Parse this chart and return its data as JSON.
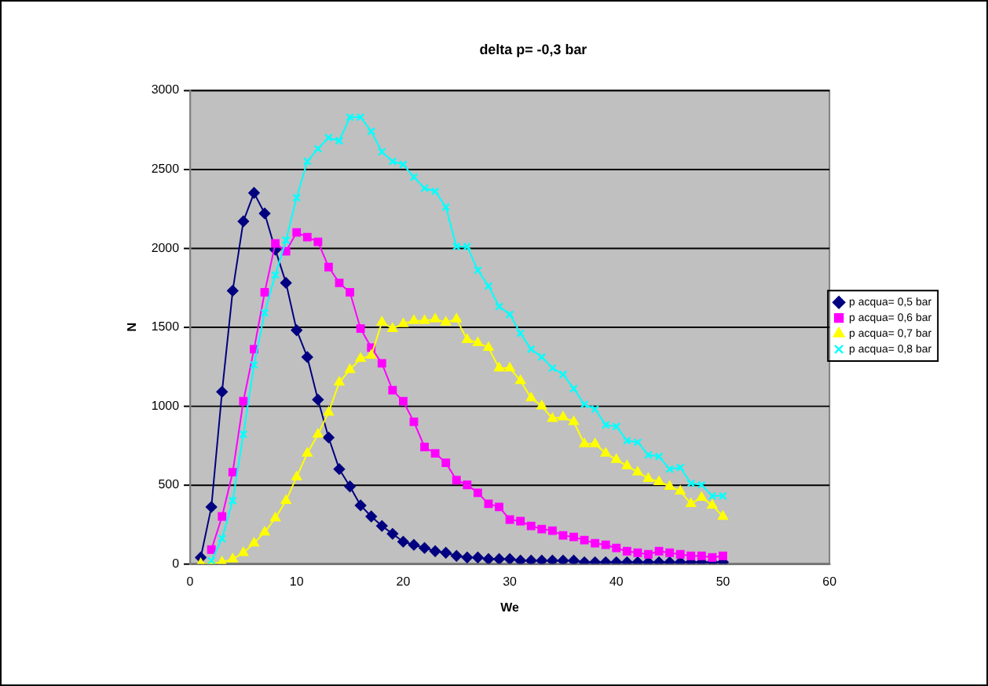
{
  "chart_data": {
    "type": "line",
    "title": "delta p= -0,3 bar",
    "xlabel": "We",
    "ylabel": "N",
    "xlim": [
      0,
      60
    ],
    "xticks": [
      0,
      10,
      20,
      30,
      40,
      50,
      60
    ],
    "ylim": [
      0,
      3000
    ],
    "yticks": [
      0,
      500,
      1000,
      1500,
      2000,
      2500,
      3000
    ],
    "grid": "y",
    "legend": "right",
    "line_style": "solid",
    "series": [
      {
        "name": "p acqua= 0,5 bar",
        "color": "#000080",
        "marker": "diamond",
        "x": [
          1,
          2,
          3,
          4,
          5,
          6,
          7,
          8,
          9,
          10,
          11,
          12,
          13,
          14,
          15,
          16,
          17,
          18,
          19,
          20,
          21,
          22,
          23,
          24,
          25,
          26,
          27,
          28,
          29,
          30,
          31,
          32,
          33,
          34,
          35,
          36,
          37,
          38,
          39,
          40,
          41,
          42,
          43,
          44,
          45,
          46,
          47,
          48,
          49,
          50
        ],
        "values": [
          40,
          360,
          1090,
          1730,
          2170,
          2350,
          2220,
          1990,
          1780,
          1480,
          1310,
          1040,
          800,
          600,
          490,
          370,
          300,
          240,
          190,
          140,
          120,
          100,
          80,
          70,
          50,
          40,
          40,
          30,
          30,
          30,
          20,
          20,
          20,
          20,
          20,
          20,
          10,
          10,
          10,
          10,
          10,
          10,
          10,
          10,
          10,
          10,
          10,
          10,
          10,
          10
        ]
      },
      {
        "name": "p acqua= 0,6 bar",
        "color": "#ff00ff",
        "marker": "square",
        "x": [
          2,
          3,
          4,
          5,
          6,
          7,
          8,
          9,
          10,
          11,
          12,
          13,
          14,
          15,
          16,
          17,
          18,
          19,
          20,
          21,
          22,
          23,
          24,
          25,
          26,
          27,
          28,
          29,
          30,
          31,
          32,
          33,
          34,
          35,
          36,
          37,
          38,
          39,
          40,
          41,
          42,
          43,
          44,
          45,
          46,
          47,
          48,
          49,
          50
        ],
        "values": [
          90,
          300,
          580,
          1030,
          1360,
          1720,
          2030,
          1980,
          2100,
          2070,
          2040,
          1880,
          1780,
          1720,
          1490,
          1370,
          1270,
          1100,
          1030,
          900,
          740,
          700,
          640,
          530,
          500,
          450,
          380,
          360,
          280,
          270,
          240,
          220,
          210,
          180,
          170,
          150,
          130,
          120,
          100,
          80,
          70,
          60,
          80,
          70,
          60,
          50,
          50,
          40,
          50
        ]
      },
      {
        "name": "p acqua= 0,7 bar",
        "color": "#ffff00",
        "marker": "triangle",
        "x": [
          1,
          2,
          3,
          4,
          5,
          6,
          7,
          8,
          9,
          10,
          11,
          12,
          13,
          14,
          15,
          16,
          17,
          18,
          19,
          20,
          21,
          22,
          23,
          24,
          25,
          26,
          27,
          28,
          29,
          30,
          31,
          32,
          33,
          34,
          35,
          36,
          37,
          38,
          39,
          40,
          41,
          42,
          43,
          44,
          45,
          46,
          47,
          48,
          49,
          50
        ],
        "values": [
          0,
          0,
          10,
          30,
          70,
          130,
          200,
          290,
          400,
          550,
          700,
          820,
          960,
          1150,
          1230,
          1300,
          1320,
          1530,
          1490,
          1520,
          1540,
          1540,
          1550,
          1530,
          1550,
          1420,
          1400,
          1370,
          1240,
          1240,
          1160,
          1050,
          1000,
          920,
          930,
          900,
          760,
          760,
          700,
          660,
          620,
          580,
          540,
          520,
          490,
          460,
          380,
          420,
          370,
          300
        ]
      },
      {
        "name": "p acqua= 0,8 bar",
        "color": "#00ffff",
        "marker": "cross",
        "x": [
          2,
          3,
          4,
          5,
          6,
          7,
          8,
          9,
          10,
          11,
          12,
          13,
          14,
          15,
          16,
          17,
          18,
          19,
          20,
          21,
          22,
          23,
          24,
          25,
          26,
          27,
          28,
          29,
          30,
          31,
          32,
          33,
          34,
          35,
          36,
          37,
          38,
          39,
          40,
          41,
          42,
          43,
          44,
          45,
          46,
          47,
          48,
          49,
          50
        ],
        "values": [
          20,
          160,
          400,
          820,
          1260,
          1590,
          1830,
          2050,
          2320,
          2550,
          2630,
          2700,
          2680,
          2830,
          2830,
          2740,
          2610,
          2550,
          2530,
          2450,
          2380,
          2360,
          2260,
          2010,
          2010,
          1860,
          1760,
          1630,
          1580,
          1460,
          1360,
          1310,
          1240,
          1200,
          1110,
          1010,
          980,
          880,
          870,
          780,
          770,
          690,
          680,
          600,
          610,
          510,
          500,
          430,
          430
        ]
      }
    ]
  }
}
